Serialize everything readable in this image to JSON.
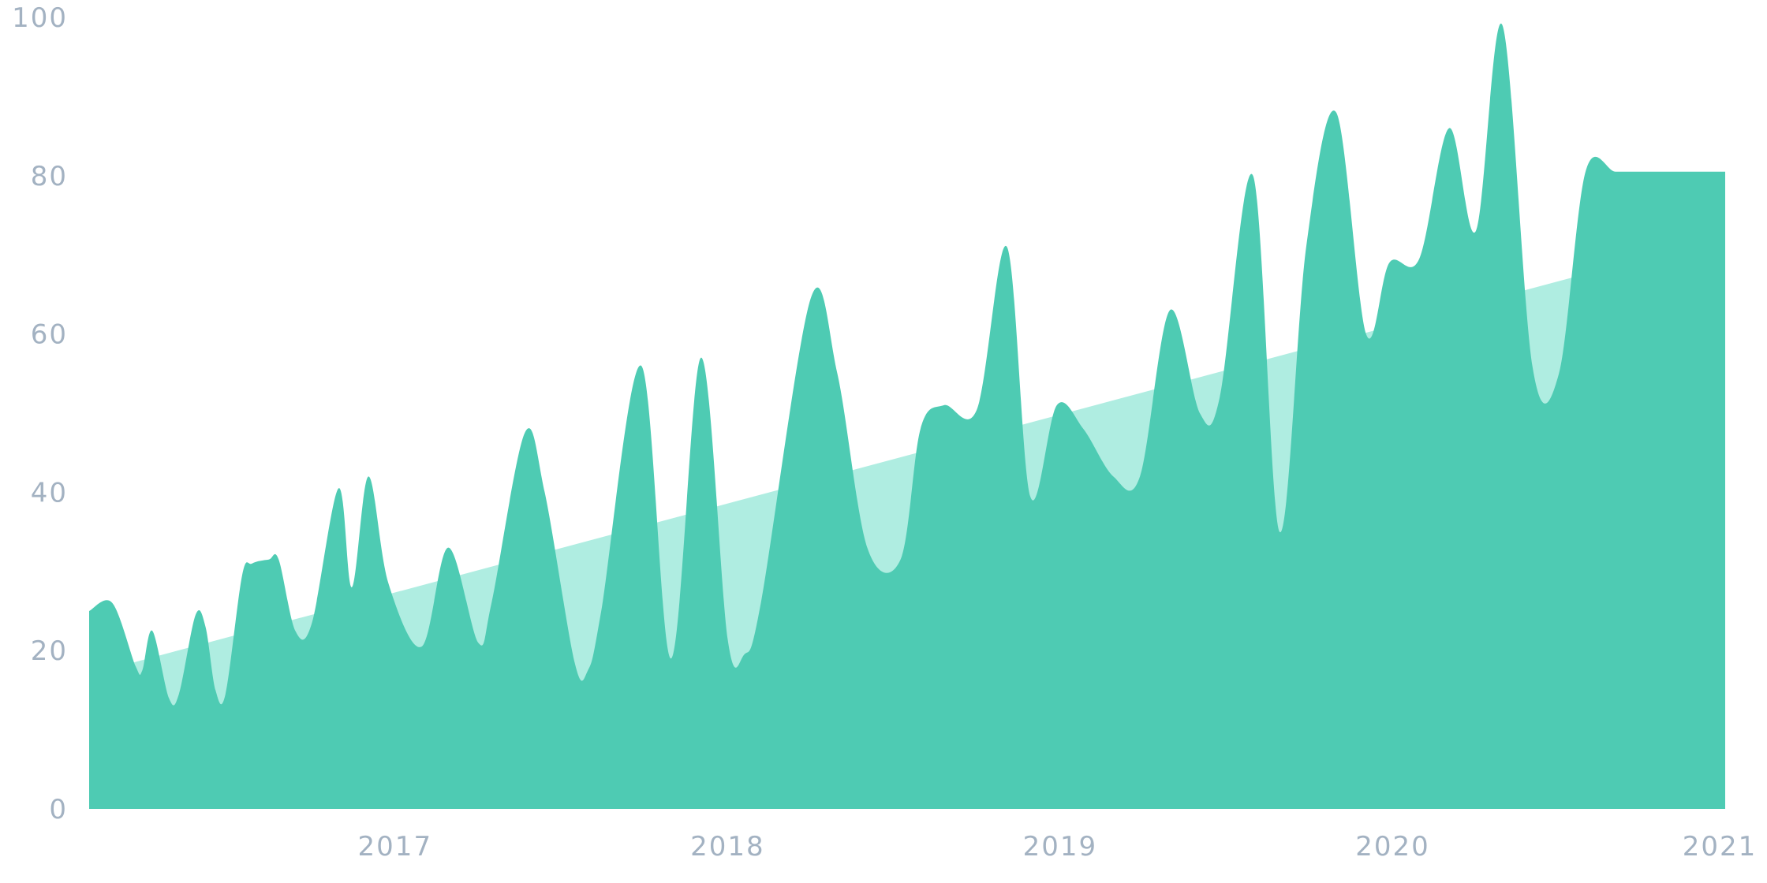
{
  "chart_data": {
    "type": "area",
    "title": "",
    "xlabel": "",
    "ylabel": "",
    "ylim": [
      0,
      100
    ],
    "xlim": [
      2016.08,
      2021.0
    ],
    "y_ticks": [
      "0",
      "20",
      "40",
      "60",
      "80",
      "100"
    ],
    "x_ticks": [
      "2017",
      "2018",
      "2019",
      "2020",
      "2021"
    ],
    "grid": false,
    "legend": "none",
    "colors": {
      "main_area": "#4ecbb3",
      "trend_area": "#afede1",
      "tick_text": "#a3b2c2"
    },
    "trend": {
      "x": [
        2016.08,
        2021.0
      ],
      "y": [
        17.0,
        72.3
      ]
    },
    "series": [
      {
        "x": [
          2016.08,
          2016.15,
          2016.22,
          2016.24,
          2016.27,
          2016.32,
          2016.35,
          2016.4,
          2016.43,
          2016.46,
          2016.49,
          2016.54,
          2016.57,
          2016.62,
          2016.65,
          2016.7,
          2016.75,
          2016.83,
          2016.87,
          2016.92,
          2016.98,
          2017.08,
          2017.16,
          2017.25,
          2017.29,
          2017.39,
          2017.45,
          2017.54,
          2017.58,
          2017.62,
          2017.74,
          2017.83,
          2017.92,
          2018.0,
          2018.05,
          2018.1,
          2018.25,
          2018.33,
          2018.42,
          2018.52,
          2018.58,
          2018.65,
          2018.75,
          2018.84,
          2018.91,
          2018.99,
          2019.07,
          2019.16,
          2019.24,
          2019.33,
          2019.42,
          2019.48,
          2019.58,
          2019.66,
          2019.74,
          2019.83,
          2019.92,
          2019.99,
          2020.08,
          2020.17,
          2020.25,
          2020.33,
          2020.42,
          2020.5,
          2020.58,
          2020.67,
          2020.75,
          2020.83,
          2020.92,
          2021.0
        ],
        "y": [
          25.0,
          26.0,
          18.0,
          17.5,
          22.5,
          14.0,
          14.5,
          24.5,
          23.0,
          15.0,
          14.5,
          29.5,
          31.0,
          31.5,
          31.5,
          22.5,
          23.5,
          40.5,
          28.0,
          42.0,
          28.5,
          20.5,
          33.0,
          21.0,
          26.0,
          47.5,
          40.0,
          18.5,
          17.5,
          25.0,
          56.0,
          19.0,
          57.0,
          21.5,
          19.5,
          26.0,
          64.5,
          55.0,
          33.0,
          31.5,
          48.0,
          51.0,
          50.5,
          71.0,
          39.5,
          51.0,
          48.0,
          42.0,
          42.0,
          63.0,
          50.0,
          52.0,
          80.0,
          35.0,
          71.0,
          88.0,
          60.0,
          69.0,
          69.5,
          86.0,
          73.0,
          99.0,
          56.0,
          55.0,
          80.5,
          80.5,
          80.5,
          80.5,
          80.5,
          80.5
        ]
      }
    ]
  }
}
